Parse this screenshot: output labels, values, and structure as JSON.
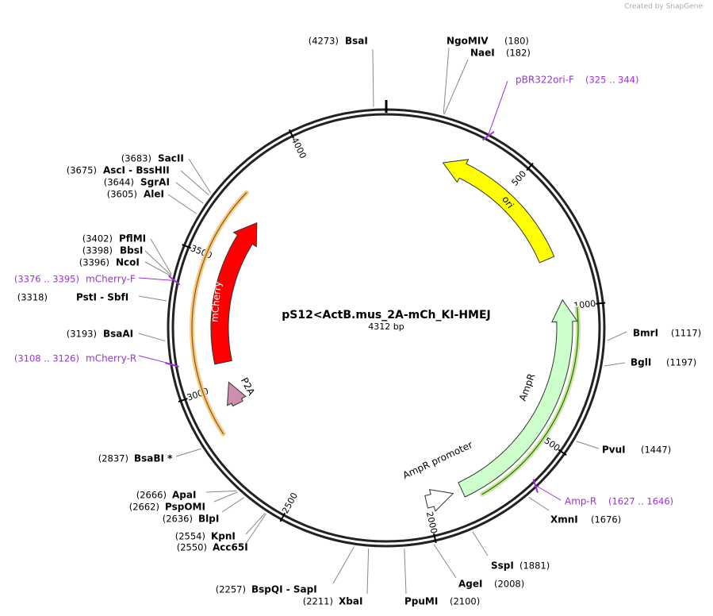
{
  "credit": "Created by SnapGene",
  "title": "pS12<ActB.mus_2A-mCh_KI-HMEJ",
  "length": "4312 bp",
  "sites": [
    {
      "name": "BsaI",
      "position": "(4273)"
    },
    {
      "name": "NgoMIV",
      "position": "(180)"
    },
    {
      "name": "NaeI",
      "position": "(182)"
    },
    {
      "name": "BmrI",
      "position": "(1117)"
    },
    {
      "name": "BglI",
      "position": "(1197)"
    },
    {
      "name": "PvuI",
      "position": "(1447)"
    },
    {
      "name": "XmnI",
      "position": "(1676)"
    },
    {
      "name": "SspI",
      "position": "(1881)"
    },
    {
      "name": "AgeI",
      "position": "(2008)"
    },
    {
      "name": "PpuMI",
      "position": "(2100)"
    },
    {
      "name": "XbaI",
      "position": "(2211)"
    },
    {
      "name": "BspQI - SapI",
      "position": "(2257)"
    },
    {
      "name": "KpnI",
      "position": "(2554)"
    },
    {
      "name": "Acc65I",
      "position": "(2550)"
    },
    {
      "name": "BlpI",
      "position": "(2636)"
    },
    {
      "name": "PspOMI",
      "position": "(2662)"
    },
    {
      "name": "ApaI",
      "position": "(2666)"
    },
    {
      "name": "BsaBI *",
      "position": "(2837)"
    },
    {
      "name": "BsaAI",
      "position": "(3193)"
    },
    {
      "name": "PstI - SbfI",
      "position": "(3318)"
    },
    {
      "name": "NcoI",
      "position": "(3396)"
    },
    {
      "name": "BbsI",
      "position": "(3398)"
    },
    {
      "name": "PflMI",
      "position": "(3402)"
    },
    {
      "name": "AleI",
      "position": "(3605)"
    },
    {
      "name": "SgrAI",
      "position": "(3644)"
    },
    {
      "name": "AscI - BssHII",
      "position": "(3675)"
    },
    {
      "name": "SacII",
      "position": "(3683)"
    }
  ],
  "primers": [
    {
      "name": "pBR322ori-F",
      "range": "(325 .. 344)"
    },
    {
      "name": "Amp-R",
      "range": "(1627 .. 1646)"
    },
    {
      "name": "mCherry-R",
      "range": "(3108 .. 3126)"
    },
    {
      "name": "mCherry-F",
      "range": "(3376 .. 3395)"
    }
  ],
  "ticks": [
    "500",
    "1000",
    "1500",
    "2000",
    "2500",
    "3000",
    "3500",
    "4000"
  ],
  "features": [
    {
      "label": "ori"
    },
    {
      "label": "AmpR"
    },
    {
      "label": "AmpR promoter"
    },
    {
      "label": "mCherry"
    },
    {
      "label": "P2A"
    }
  ]
}
